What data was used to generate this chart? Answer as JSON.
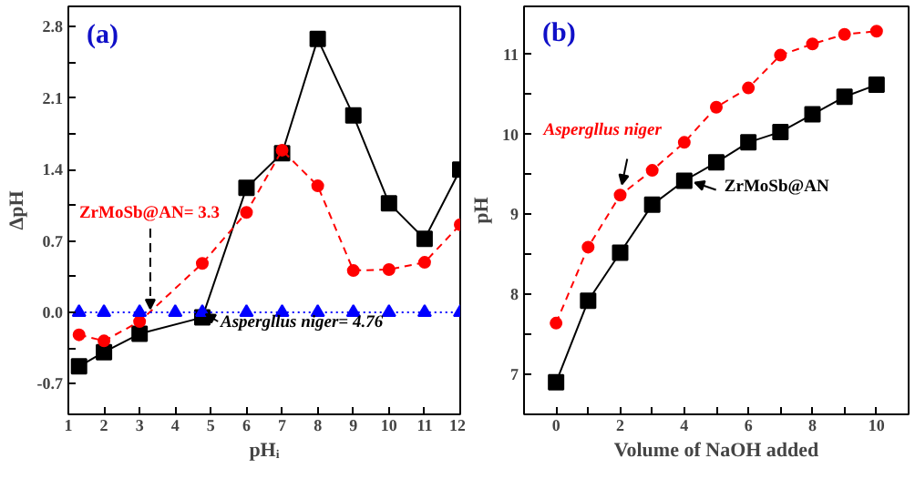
{
  "chart_data": [
    {
      "type": "line",
      "xlabel": "pHᵢ",
      "ylabel": "ΔpH",
      "xlim": [
        1,
        12
      ],
      "ylim": [
        -1.0,
        3.0
      ],
      "xticks": [
        1,
        2,
        3,
        4,
        5,
        6,
        7,
        8,
        9,
        10,
        11,
        12
      ],
      "yticks": [
        -0.7,
        {
          "value": -0.35,
          "label": null
        },
        {
          "value": 0,
          "label": "0.0"
        },
        {
          "value": 0.35,
          "label": null
        },
        0.7,
        {
          "value": 1.05,
          "label": null
        },
        1.4,
        {
          "value": 1.75,
          "label": null
        },
        2.1,
        {
          "value": 2.45,
          "label": null
        },
        2.8
      ],
      "grid": false,
      "series": [
        {
          "color": "#000000",
          "marker": "square",
          "line_style": "solid",
          "x": [
            1.3,
            2,
            3,
            4.76,
            6,
            7,
            8,
            9,
            10,
            11,
            12
          ],
          "values": [
            -0.53,
            -0.39,
            -0.21,
            -0.05,
            1.22,
            1.56,
            2.68,
            1.93,
            1.07,
            0.72,
            1.4
          ]
        },
        {
          "color": "#ff0000",
          "marker": "circle",
          "line_style": "dashed",
          "x": [
            1.3,
            2,
            3,
            4.76,
            6,
            7,
            8,
            9,
            10,
            11,
            12
          ],
          "values": [
            -0.22,
            -0.28,
            -0.09,
            0.48,
            0.98,
            1.59,
            1.24,
            0.41,
            0.42,
            0.49,
            0.86
          ]
        },
        {
          "color": "#0000ff",
          "marker": "triangle",
          "line_style": "dotted",
          "x": [
            1.3,
            2,
            3,
            4,
            4.76,
            6,
            7,
            8,
            9,
            10,
            11,
            12
          ],
          "values": [
            0,
            0,
            0,
            0,
            0,
            0,
            0,
            0,
            0,
            0,
            0,
            0
          ]
        }
      ],
      "annotations": [
        "(a)",
        {
          "text": "ZrMoSb@AN= 3.3",
          "x": 3.3,
          "y": 0
        },
        {
          "text": "Aspergllus niger= 4.76",
          "x": 4.76,
          "y": 0
        }
      ]
    },
    {
      "type": "line",
      "xlabel": "Volume of NaOH added",
      "ylabel": "pH",
      "xlim": [
        -1,
        11
      ],
      "ylim": [
        6.5,
        11.6
      ],
      "xticks": [
        0,
        {
          "value": 1,
          "label": null
        },
        2,
        {
          "value": 3,
          "label": null
        },
        4,
        {
          "value": 5,
          "label": null
        },
        6,
        {
          "value": 7,
          "label": null
        },
        8,
        {
          "value": 9,
          "label": null
        },
        10
      ],
      "yticks": [
        7,
        {
          "value": 7.5,
          "label": null
        },
        8,
        {
          "value": 8.5,
          "label": null
        },
        9,
        {
          "value": 9.5,
          "label": null
        },
        10,
        {
          "value": 10.5,
          "label": null
        },
        11
      ],
      "grid": false,
      "x": [
        0,
        1,
        2,
        3,
        4,
        5,
        6,
        7,
        8,
        9,
        10
      ],
      "series": [
        {
          "color": "#000000",
          "marker": "square",
          "line_style": "solid",
          "values": [
            6.9,
            7.92,
            8.52,
            9.12,
            9.42,
            9.65,
            9.9,
            10.03,
            10.25,
            10.47,
            10.62
          ]
        },
        {
          "color": "#ff0000",
          "marker": "circle",
          "line_style": "dashed",
          "values": [
            7.64,
            8.59,
            9.24,
            9.55,
            9.9,
            10.34,
            10.58,
            10.99,
            11.13,
            11.25,
            11.29
          ]
        }
      ],
      "annotations": [
        "(b)",
        {
          "text": "Aspergllus niger",
          "x": 2,
          "y": 9.24
        },
        {
          "text": "ZrMoSb@AN",
          "x": 4,
          "y": 9.42
        }
      ]
    }
  ]
}
